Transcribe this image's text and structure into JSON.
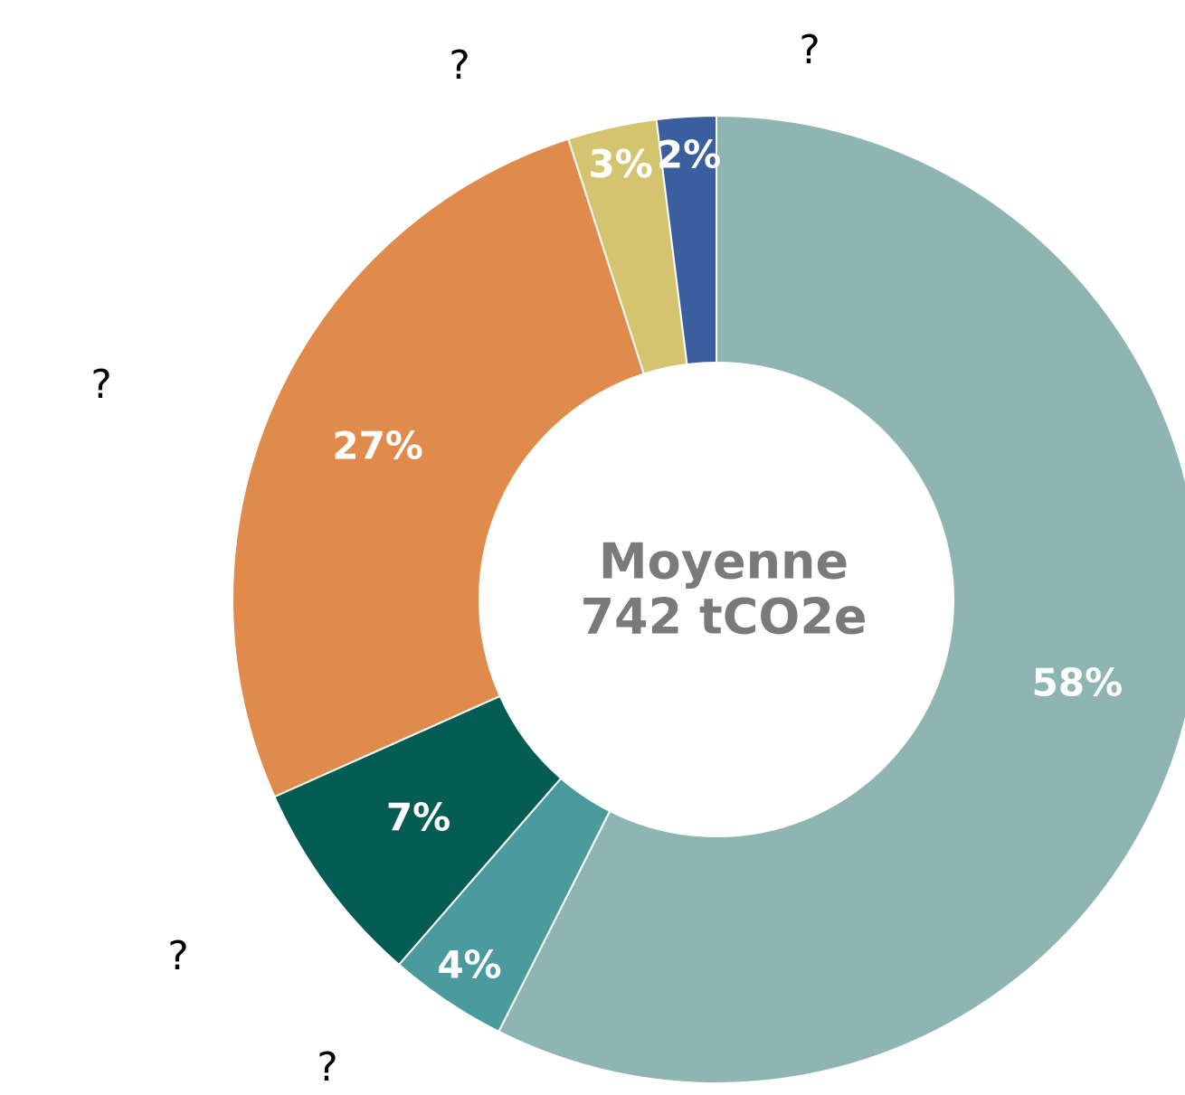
{
  "chart_data": {
    "type": "donut",
    "categories": [
      null,
      "?",
      "?",
      "?",
      "?",
      "?"
    ],
    "values": [
      58,
      4,
      7,
      27,
      3,
      2
    ],
    "value_labels": [
      "58%",
      "4%",
      "7%",
      "27%",
      "3%",
      "2%"
    ],
    "colors": [
      "#8fb5b3",
      "#4a9a9e",
      "#045c52",
      "#e08a4b",
      "#d5c46f",
      "#3b5f9e"
    ],
    "center_text": [
      "Moyenne",
      "742 tCO2e"
    ]
  }
}
